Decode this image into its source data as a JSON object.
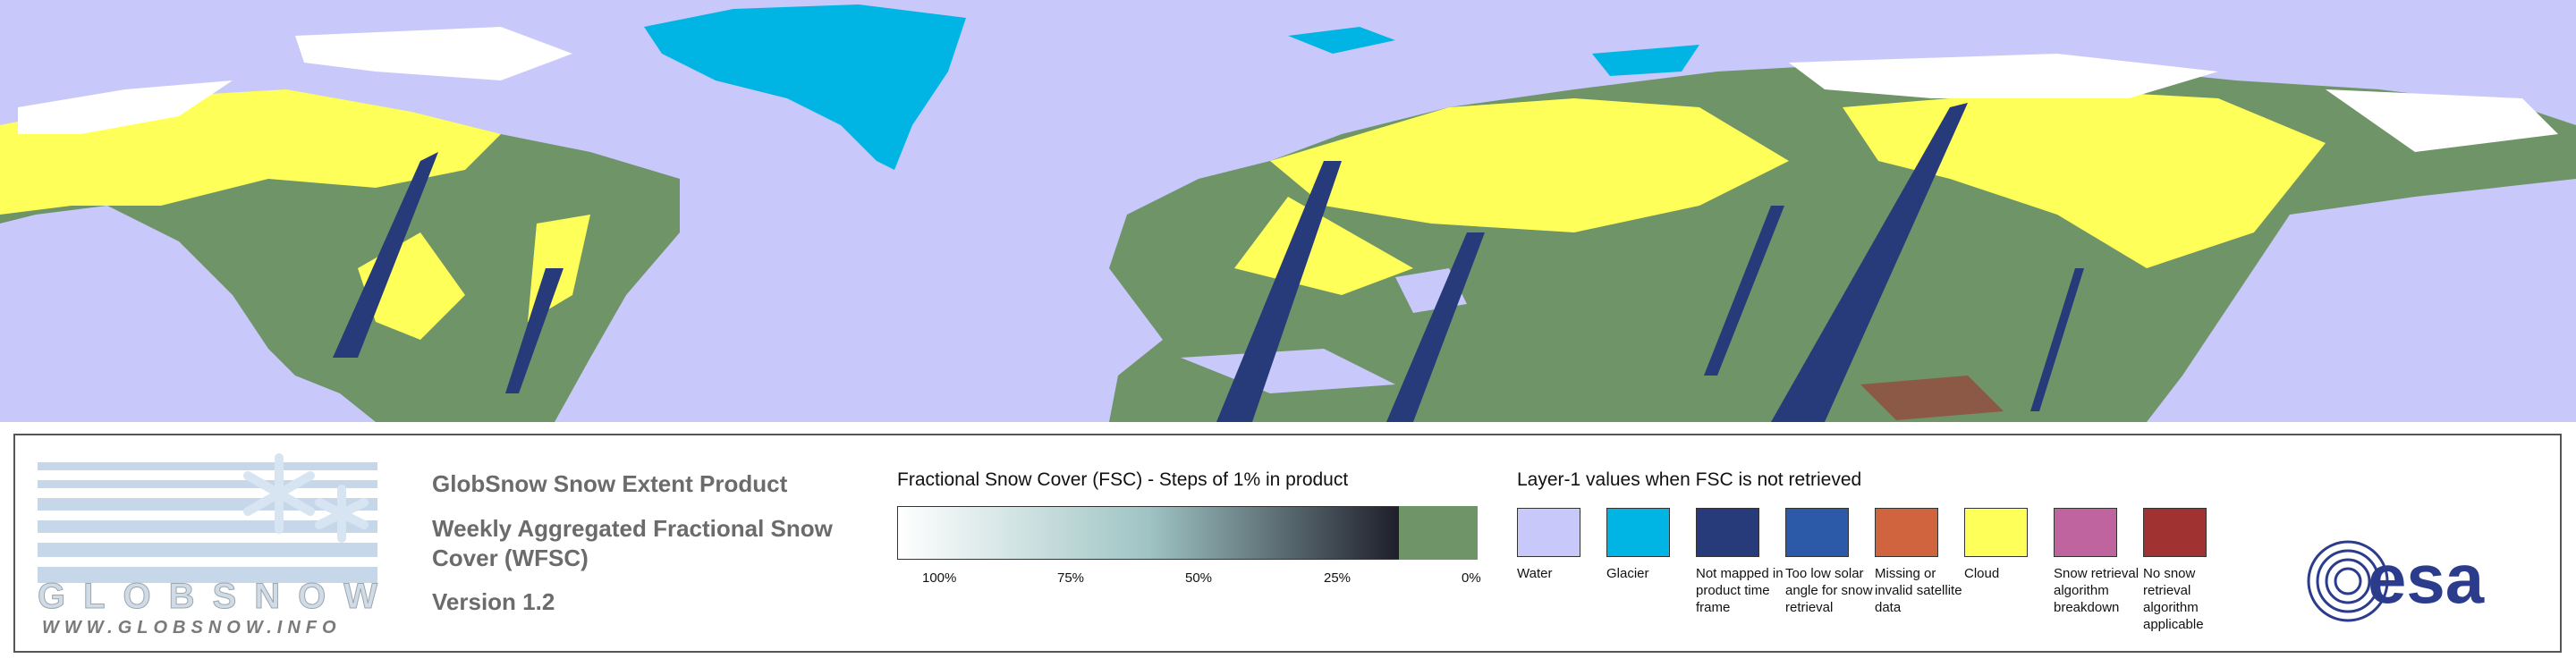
{
  "logo": {
    "name": "GLOBSNOW",
    "url": "WWW.GLOBSNOW.INFO"
  },
  "product": {
    "title": "GlobSnow Snow Extent Product",
    "subtitle": "Weekly Aggregated Fractional Snow Cover (WFSC)",
    "version": "Version 1.2"
  },
  "fsc_scale": {
    "title": "Fractional Snow Cover (FSC) - Steps of 1% in product",
    "labels": [
      "100%",
      "75%",
      "50%",
      "25%",
      "0%"
    ],
    "gradient": [
      "#ffffff",
      "#9fc4c4",
      "#1e1e2a"
    ],
    "zero_color": "#6e9468"
  },
  "layer1": {
    "title": "Layer-1 values when FSC is not retrieved",
    "items": [
      {
        "label": "Water",
        "color": "#c8c8fa"
      },
      {
        "label": "Glacier",
        "color": "#00b4e4"
      },
      {
        "label": "Not mapped in product time frame",
        "color": "#273a7a"
      },
      {
        "label": "Too low solar angle for snow retrieval",
        "color": "#2c5aa8"
      },
      {
        "label": "Missing or invalid satellite data",
        "color": "#d0643e"
      },
      {
        "label": "Cloud",
        "color": "#ffff5a"
      },
      {
        "label": "Snow retrieval algorithm breakdown",
        "color": "#c064a0"
      },
      {
        "label": "No snow retrieval algorithm applicable",
        "color": "#a03232"
      }
    ]
  },
  "agency": "esa"
}
